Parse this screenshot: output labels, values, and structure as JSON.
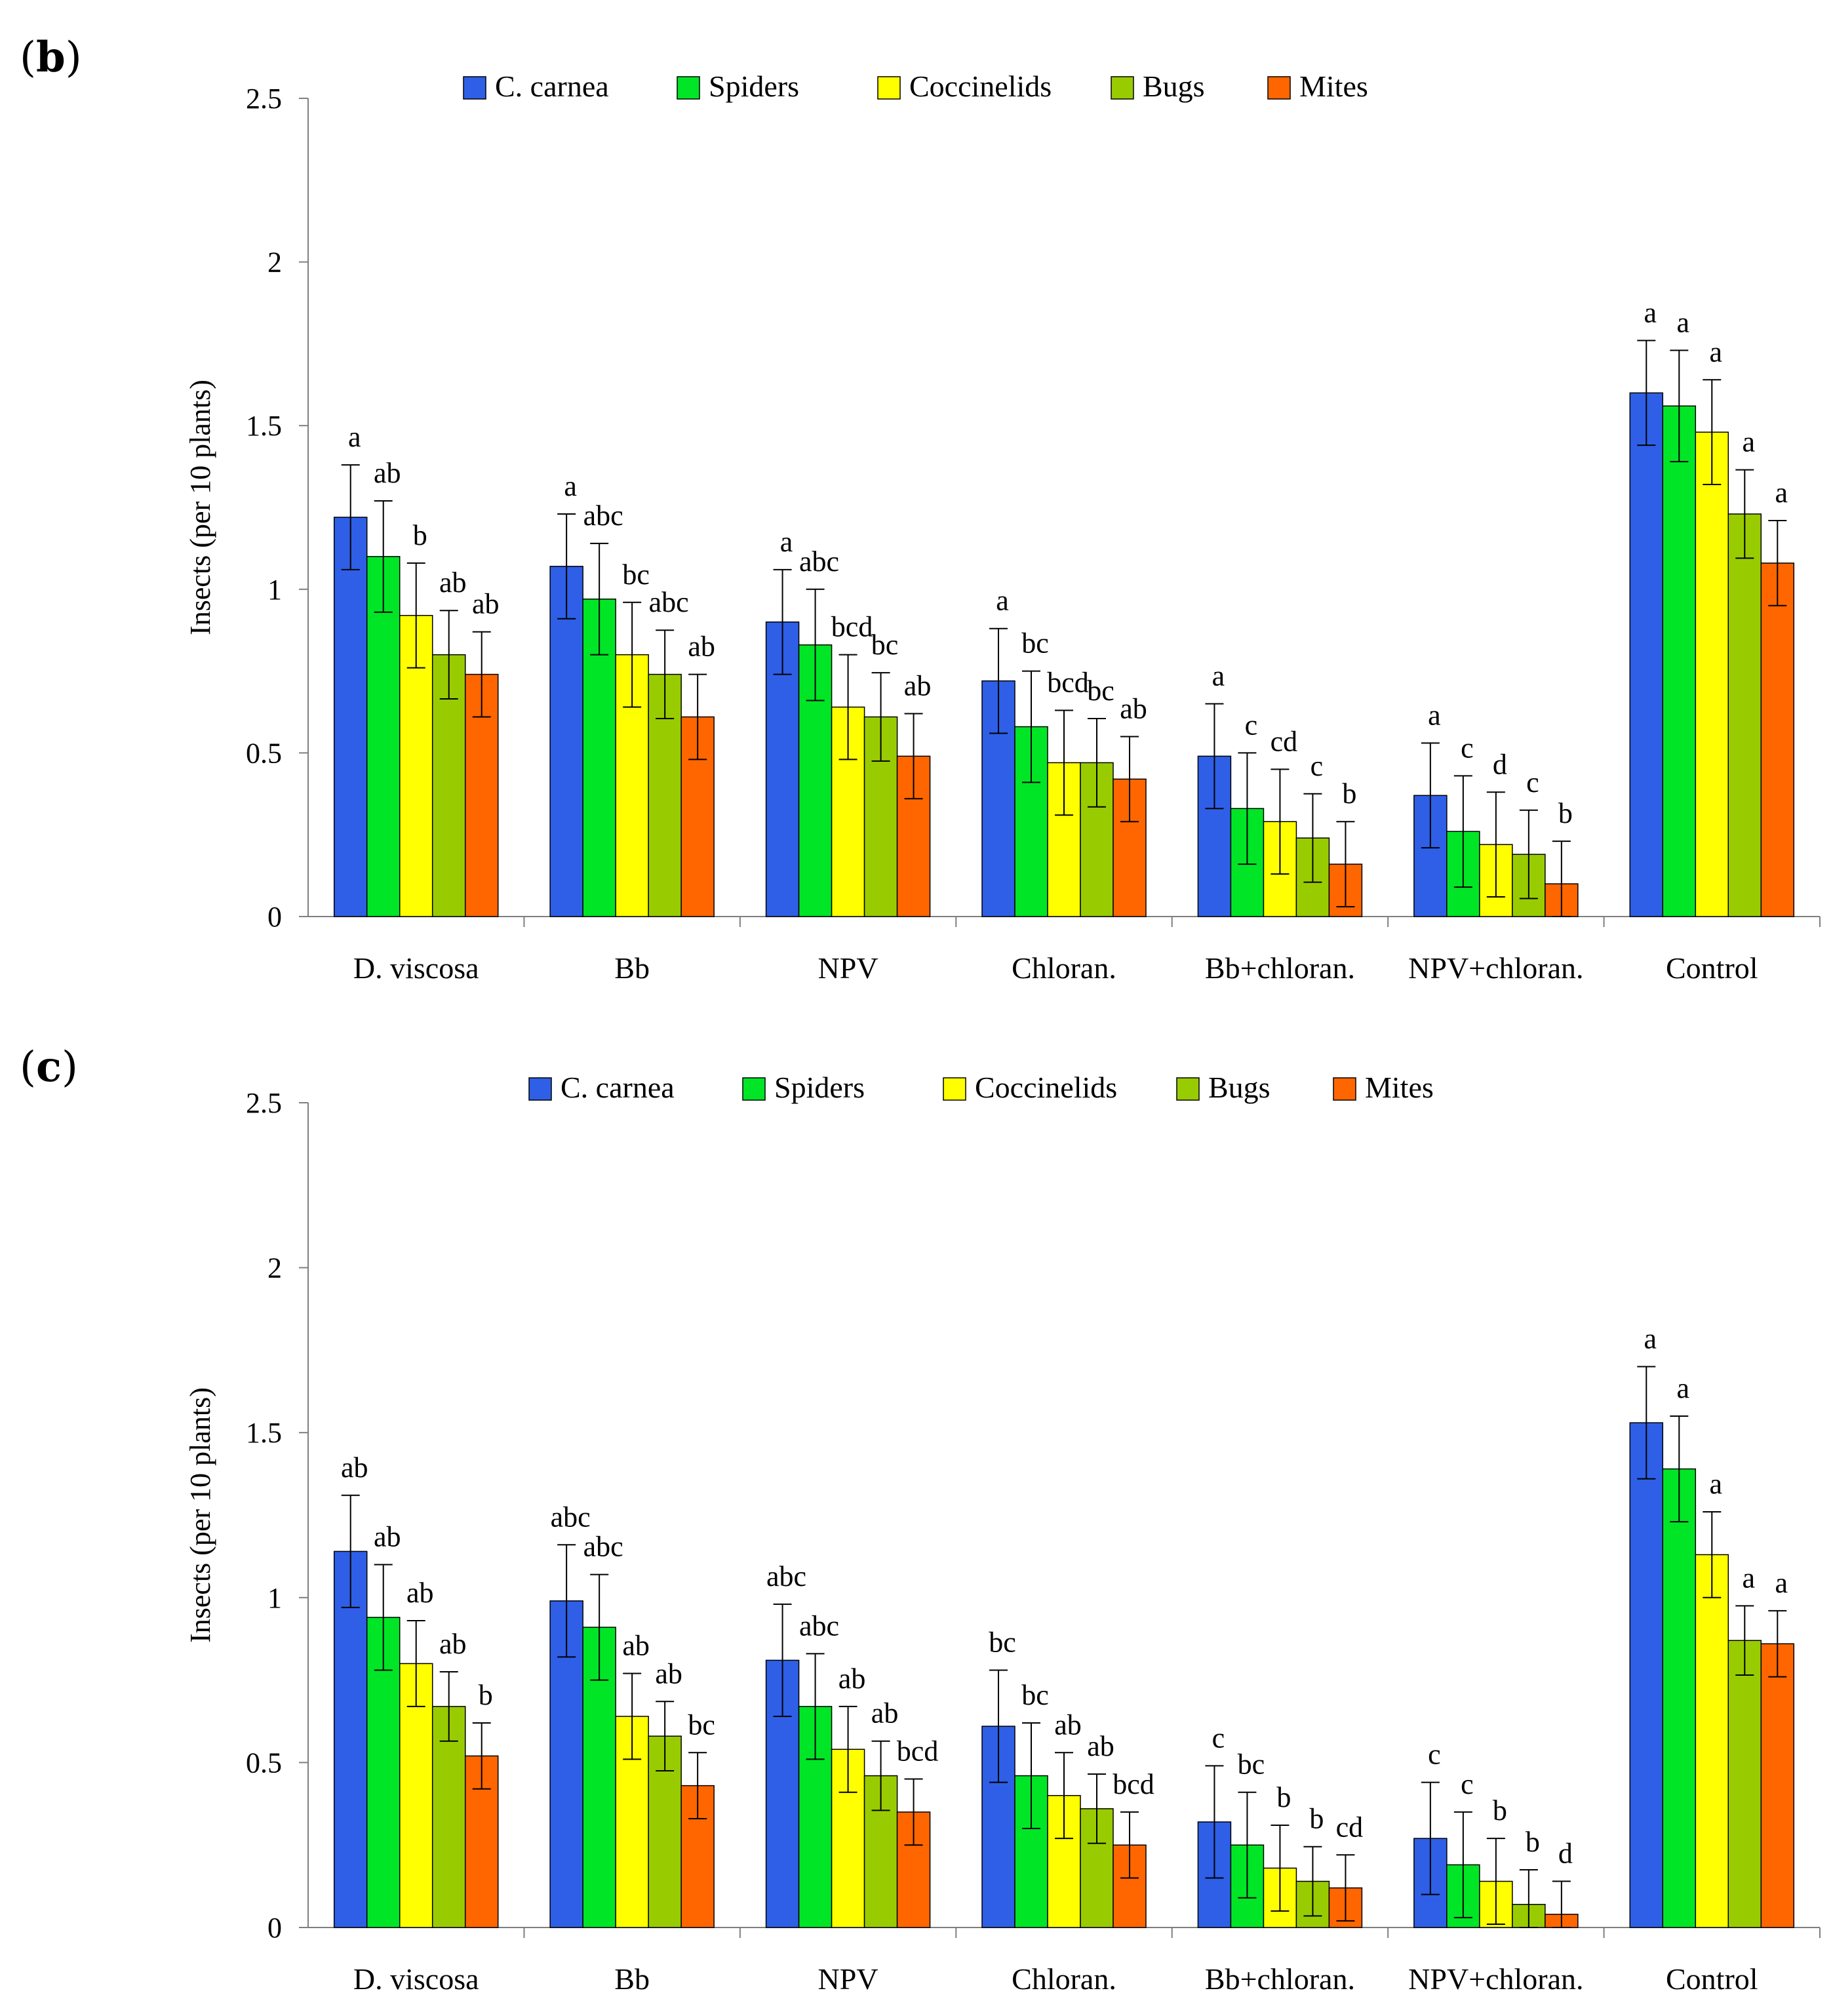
{
  "colors": {
    "C. carnea": "#2e5fe6",
    "Spiders": "#00e626",
    "Coccinelids": "#ffff00",
    "Bugs": "#99cc00",
    "Mites": "#ff6600"
  },
  "chart_data": [
    {
      "panel_label": "b",
      "type": "bar",
      "title": "",
      "xlabel": "",
      "ylabel": "Insects (per 10 plants)",
      "ylim": [
        0,
        2.5
      ],
      "yticks": [
        "0",
        "0.5",
        "1",
        "1.5",
        "2",
        "2.5"
      ],
      "categories": [
        "D. viscosa",
        "Bb",
        "NPV",
        "Chloran.",
        "Bb+chloran.",
        "NPV+chloran.",
        "Control"
      ],
      "legend": [
        "C. carnea",
        "Spiders",
        "Coccinelids",
        "Bugs",
        "Mites"
      ],
      "series": [
        {
          "name": "C. carnea",
          "values": [
            1.22,
            1.07,
            0.9,
            0.72,
            0.49,
            0.37,
            1.6
          ],
          "errors": [
            0.16,
            0.16,
            0.16,
            0.16,
            0.16,
            0.16,
            0.16
          ],
          "letters": [
            "a",
            "a",
            "a",
            "a",
            "a",
            "a",
            "a"
          ]
        },
        {
          "name": "Spiders",
          "values": [
            1.1,
            0.97,
            0.83,
            0.58,
            0.33,
            0.26,
            1.56
          ],
          "errors": [
            0.17,
            0.17,
            0.17,
            0.17,
            0.17,
            0.17,
            0.17
          ],
          "letters": [
            "ab",
            "abc",
            "abc",
            "bc",
            "c",
            "c",
            "a"
          ]
        },
        {
          "name": "Coccinelids",
          "values": [
            0.92,
            0.8,
            0.64,
            0.47,
            0.29,
            0.22,
            1.48
          ],
          "errors": [
            0.16,
            0.16,
            0.16,
            0.16,
            0.16,
            0.16,
            0.16
          ],
          "letters": [
            "b",
            "bc",
            "bcd",
            "bcd",
            "cd",
            "d",
            "a"
          ]
        },
        {
          "name": "Bugs",
          "values": [
            0.8,
            0.74,
            0.61,
            0.47,
            0.24,
            0.19,
            1.23
          ],
          "errors": [
            0.135,
            0.135,
            0.135,
            0.135,
            0.135,
            0.135,
            0.135
          ],
          "letters": [
            "ab",
            "abc",
            "bc",
            "bc",
            "c",
            "c",
            "a"
          ]
        },
        {
          "name": "Mites",
          "values": [
            0.74,
            0.61,
            0.49,
            0.42,
            0.16,
            0.1,
            1.08
          ],
          "errors": [
            0.13,
            0.13,
            0.13,
            0.13,
            0.13,
            0.13,
            0.13
          ],
          "letters": [
            "ab",
            "ab",
            "ab",
            "ab",
            "b",
            "b",
            "a"
          ]
        }
      ]
    },
    {
      "panel_label": "c",
      "type": "bar",
      "title": "",
      "xlabel": "",
      "ylabel": "Insects (per 10 plants)",
      "ylim": [
        0,
        2.5
      ],
      "yticks": [
        "0",
        "0.5",
        "1",
        "1.5",
        "2",
        "2.5"
      ],
      "categories": [
        "D. viscosa",
        "Bb",
        "NPV",
        "Chloran.",
        "Bb+chloran.",
        "NPV+chloran.",
        "Control"
      ],
      "legend": [
        "C. carnea",
        "Spiders",
        "Coccinelids",
        "Bugs",
        "Mites"
      ],
      "series": [
        {
          "name": "C. carnea",
          "values": [
            1.14,
            0.99,
            0.81,
            0.61,
            0.32,
            0.27,
            1.53
          ],
          "errors": [
            0.17,
            0.17,
            0.17,
            0.17,
            0.17,
            0.17,
            0.17
          ],
          "letters": [
            "ab",
            "abc",
            "abc",
            "bc",
            "c",
            "c",
            "a"
          ]
        },
        {
          "name": "Spiders",
          "values": [
            0.94,
            0.91,
            0.67,
            0.46,
            0.25,
            0.19,
            1.39
          ],
          "errors": [
            0.16,
            0.16,
            0.16,
            0.16,
            0.16,
            0.16,
            0.16
          ],
          "letters": [
            "ab",
            "abc",
            "abc",
            "bc",
            "bc",
            "c",
            "a"
          ]
        },
        {
          "name": "Coccinelids",
          "values": [
            0.8,
            0.64,
            0.54,
            0.4,
            0.18,
            0.14,
            1.13
          ],
          "errors": [
            0.13,
            0.13,
            0.13,
            0.13,
            0.13,
            0.13,
            0.13
          ],
          "letters": [
            "ab",
            "ab",
            "ab",
            "ab",
            "b",
            "b",
            "a"
          ]
        },
        {
          "name": "Bugs",
          "values": [
            0.67,
            0.58,
            0.46,
            0.36,
            0.14,
            0.07,
            0.87
          ],
          "errors": [
            0.105,
            0.105,
            0.105,
            0.105,
            0.105,
            0.105,
            0.105
          ],
          "letters": [
            "ab",
            "ab",
            "ab",
            "ab",
            "b",
            "b",
            "a"
          ]
        },
        {
          "name": "Mites",
          "values": [
            0.52,
            0.43,
            0.35,
            0.25,
            0.12,
            0.04,
            0.86
          ],
          "errors": [
            0.1,
            0.1,
            0.1,
            0.1,
            0.1,
            0.1,
            0.1
          ],
          "letters": [
            "b",
            "bc",
            "bcd",
            "bcd",
            "cd",
            "d",
            "a"
          ]
        }
      ]
    }
  ]
}
